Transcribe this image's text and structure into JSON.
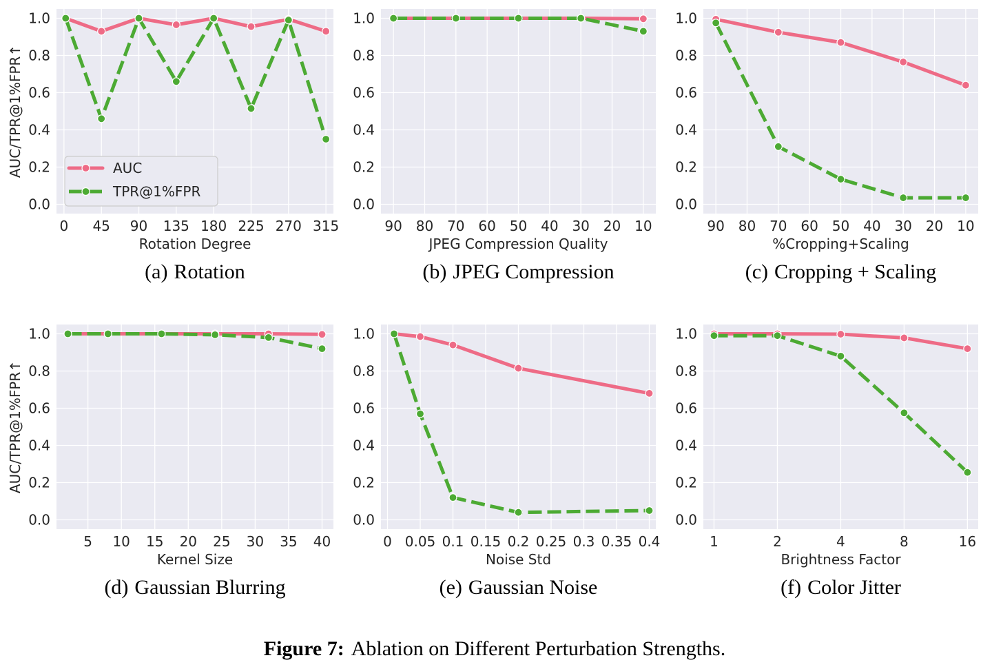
{
  "figure_caption": {
    "label": "Figure 7:",
    "text": "Ablation on Different Perturbation Strengths."
  },
  "colors": {
    "auc": "#ee6b86",
    "tpr": "#4caa33",
    "panel_bg": "#eaeaf2",
    "grid": "#ffffff"
  },
  "legend": {
    "auc_label": "AUC",
    "tpr_label": "TPR@1%FPR"
  },
  "chart_data": [
    {
      "id": "a",
      "type": "line",
      "caption_label": "(a)",
      "caption_text": "Rotation",
      "xlabel": "Rotation Degree",
      "ylabel": "AUC/TPR@1%FPR↑",
      "x_scale": "linear",
      "xlim": [
        -9,
        324
      ],
      "ylim": [
        -0.05,
        1.05
      ],
      "xticks": [
        0,
        45,
        90,
        135,
        180,
        225,
        270,
        315
      ],
      "xtick_labels": [
        "0",
        "45",
        "90",
        "135",
        "180",
        "225",
        "270",
        "315"
      ],
      "yticks": [
        0.0,
        0.2,
        0.4,
        0.6,
        0.8,
        1.0
      ],
      "ytick_labels": [
        "0.0",
        "0.2",
        "0.4",
        "0.6",
        "0.8",
        "1.0"
      ],
      "legend_position": "lower-left",
      "series": [
        {
          "name": "AUC",
          "x": [
            2,
            45,
            90,
            135,
            180,
            225,
            270,
            315
          ],
          "values": [
            1.0,
            0.93,
            1.0,
            0.965,
            1.0,
            0.955,
            0.995,
            0.93
          ]
        },
        {
          "name": "TPR@1%FPR",
          "x": [
            2,
            45,
            90,
            135,
            180,
            225,
            270,
            315
          ],
          "values": [
            1.0,
            0.46,
            1.0,
            0.66,
            1.0,
            0.515,
            0.99,
            0.35
          ]
        }
      ]
    },
    {
      "id": "b",
      "type": "line",
      "caption_label": "(b)",
      "caption_text": "JPEG Compression",
      "xlabel": "JPEG Compression Quality",
      "ylabel": "",
      "x_scale": "reversed",
      "xlim": [
        94,
        6
      ],
      "ylim": [
        -0.05,
        1.05
      ],
      "xticks": [
        90,
        80,
        70,
        60,
        50,
        40,
        30,
        20,
        10
      ],
      "xtick_labels": [
        "90",
        "80",
        "70",
        "60",
        "50",
        "40",
        "30",
        "20",
        "10"
      ],
      "yticks": [
        0.0,
        0.2,
        0.4,
        0.6,
        0.8,
        1.0
      ],
      "ytick_labels": [
        "0.0",
        "0.2",
        "0.4",
        "0.6",
        "0.8",
        "1.0"
      ],
      "series": [
        {
          "name": "AUC",
          "x": [
            90,
            70,
            50,
            30,
            10
          ],
          "values": [
            1.0,
            1.0,
            1.0,
            1.0,
            0.997
          ]
        },
        {
          "name": "TPR@1%FPR",
          "x": [
            90,
            70,
            50,
            30,
            10
          ],
          "values": [
            1.0,
            1.0,
            1.0,
            1.0,
            0.93
          ]
        }
      ]
    },
    {
      "id": "c",
      "type": "line",
      "caption_label": "(c)",
      "caption_text": "Cropping + Scaling",
      "xlabel": "%Cropping+Scaling",
      "ylabel": "",
      "x_scale": "reversed",
      "xlim": [
        94,
        6
      ],
      "ylim": [
        -0.05,
        1.05
      ],
      "xticks": [
        90,
        80,
        70,
        60,
        50,
        40,
        30,
        20,
        10
      ],
      "xtick_labels": [
        "90",
        "80",
        "70",
        "60",
        "50",
        "40",
        "30",
        "20",
        "10"
      ],
      "yticks": [
        0.0,
        0.2,
        0.4,
        0.6,
        0.8,
        1.0
      ],
      "ytick_labels": [
        "0.0",
        "0.2",
        "0.4",
        "0.6",
        "0.8",
        "1.0"
      ],
      "series": [
        {
          "name": "AUC",
          "x": [
            90,
            70,
            50,
            30,
            10
          ],
          "values": [
            0.995,
            0.925,
            0.87,
            0.765,
            0.64
          ]
        },
        {
          "name": "TPR@1%FPR",
          "x": [
            90,
            70,
            50,
            30,
            10
          ],
          "values": [
            0.975,
            0.31,
            0.135,
            0.035,
            0.035
          ]
        }
      ]
    },
    {
      "id": "d",
      "type": "line",
      "caption_label": "(d)",
      "caption_text": "Gaussian Blurring",
      "xlabel": "Kernel Size",
      "ylabel": "AUC/TPR@1%FPR↑",
      "x_scale": "linear",
      "xlim": [
        0.3,
        41.7
      ],
      "ylim": [
        -0.05,
        1.05
      ],
      "xticks": [
        5,
        10,
        15,
        20,
        25,
        30,
        35,
        40
      ],
      "xtick_labels": [
        "5",
        "10",
        "15",
        "20",
        "25",
        "30",
        "35",
        "40"
      ],
      "yticks": [
        0.0,
        0.2,
        0.4,
        0.6,
        0.8,
        1.0
      ],
      "ytick_labels": [
        "0.0",
        "0.2",
        "0.4",
        "0.6",
        "0.8",
        "1.0"
      ],
      "series": [
        {
          "name": "AUC",
          "x": [
            2,
            8,
            16,
            24,
            32,
            40
          ],
          "values": [
            1.0,
            1.0,
            1.0,
            1.0,
            1.0,
            0.997
          ]
        },
        {
          "name": "TPR@1%FPR",
          "x": [
            2,
            8,
            16,
            24,
            32,
            40
          ],
          "values": [
            1.0,
            1.0,
            1.0,
            0.995,
            0.98,
            0.92
          ]
        }
      ]
    },
    {
      "id": "e",
      "type": "line",
      "caption_label": "(e)",
      "caption_text": "Gaussian Noise",
      "xlabel": "Noise Std",
      "ylabel": "",
      "x_scale": "linear",
      "xlim": [
        -0.01,
        0.41
      ],
      "ylim": [
        -0.05,
        1.05
      ],
      "xticks": [
        0,
        0.05,
        0.1,
        0.15,
        0.2,
        0.25,
        0.3,
        0.35,
        0.4
      ],
      "xtick_labels": [
        "0",
        "0.05",
        "0.1",
        "0.15",
        "0.2",
        "0.25",
        "0.3",
        "0.35",
        "0.4"
      ],
      "yticks": [
        0.0,
        0.2,
        0.4,
        0.6,
        0.8,
        1.0
      ],
      "ytick_labels": [
        "0.0",
        "0.2",
        "0.4",
        "0.6",
        "0.8",
        "1.0"
      ],
      "series": [
        {
          "name": "AUC",
          "x": [
            0.01,
            0.05,
            0.1,
            0.2,
            0.4
          ],
          "values": [
            1.0,
            0.985,
            0.94,
            0.815,
            0.68
          ]
        },
        {
          "name": "TPR@1%FPR",
          "x": [
            0.01,
            0.05,
            0.1,
            0.2,
            0.4
          ],
          "values": [
            1.0,
            0.57,
            0.12,
            0.04,
            0.05
          ]
        }
      ]
    },
    {
      "id": "f",
      "type": "line",
      "caption_label": "(f)",
      "caption_text": "Color Jitter",
      "xlabel": "Brightness Factor",
      "ylabel": "",
      "x_scale": "log2",
      "xlim": [
        0.89,
        18.0
      ],
      "ylim": [
        -0.05,
        1.05
      ],
      "xticks": [
        1,
        2,
        4,
        8,
        16
      ],
      "xtick_labels": [
        "1",
        "2",
        "4",
        "8",
        "16"
      ],
      "yticks": [
        0.0,
        0.2,
        0.4,
        0.6,
        0.8,
        1.0
      ],
      "ytick_labels": [
        "0.0",
        "0.2",
        "0.4",
        "0.6",
        "0.8",
        "1.0"
      ],
      "series": [
        {
          "name": "AUC",
          "x": [
            1,
            2,
            4,
            8,
            16
          ],
          "values": [
            1.0,
            1.0,
            0.998,
            0.978,
            0.92
          ]
        },
        {
          "name": "TPR@1%FPR",
          "x": [
            1,
            2,
            4,
            8,
            16
          ],
          "values": [
            0.99,
            0.99,
            0.88,
            0.575,
            0.255
          ]
        }
      ]
    }
  ]
}
